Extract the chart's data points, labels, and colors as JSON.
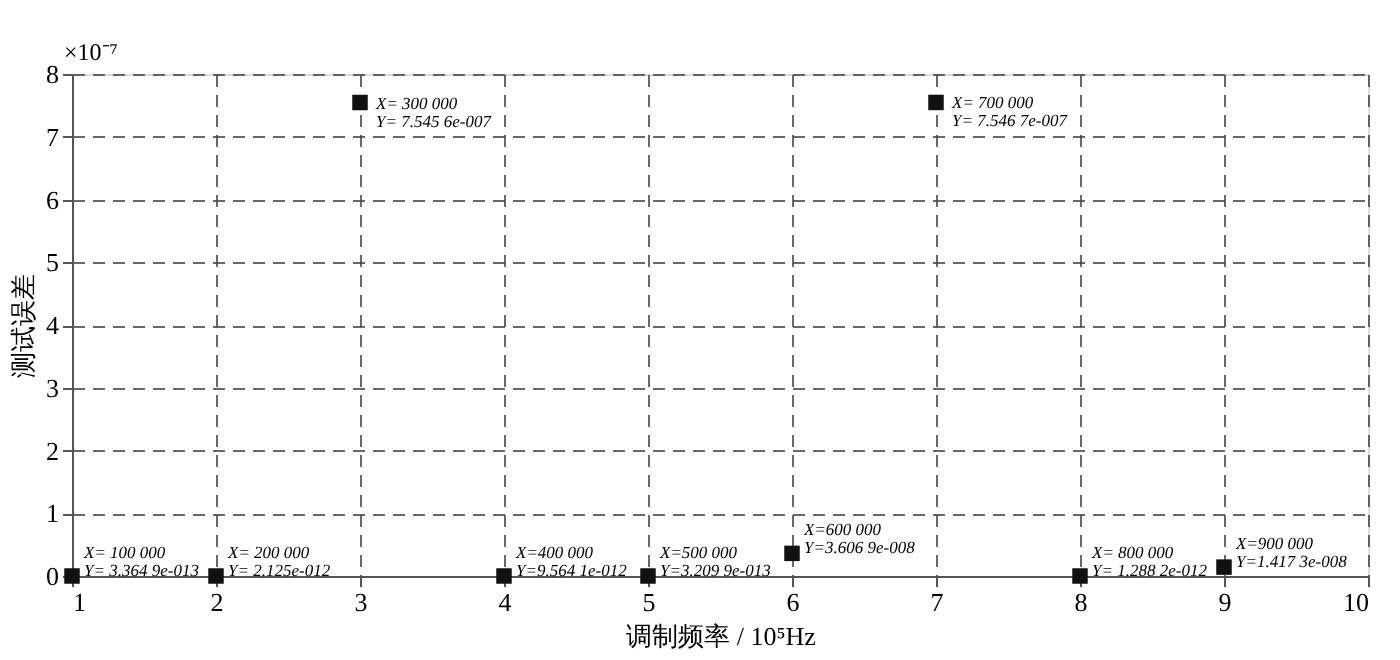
{
  "chart_data": {
    "type": "scatter",
    "xlabel": "调制频率 / 10⁵Hz",
    "ylabel": "测试误差",
    "x": [
      1,
      2,
      3,
      4,
      5,
      6,
      7,
      8,
      9
    ],
    "values": [
      3.3649e-06,
      2.125e-05,
      7.5456,
      9.5641e-05,
      3.2099e-06,
      0.36069,
      7.5467,
      1.2882e-05,
      0.14173
    ],
    "color": "#111111",
    "marker": "square",
    "xlim": [
      1,
      10
    ],
    "xticks": [
      1,
      2,
      3,
      4,
      5,
      6,
      7,
      8,
      9,
      10
    ],
    "ylim": [
      0,
      8
    ],
    "yticks": [
      0,
      1,
      2,
      3,
      4,
      5,
      6,
      7,
      8
    ],
    "grid": true,
    "annotations": [
      "×10⁻⁷",
      {
        "text": "X= 100 000\nY= 3.364 9e-013",
        "x": 1,
        "y": 3.3649e-06
      },
      {
        "text": "X= 200 000\nY= 2.125e-012",
        "x": 2,
        "y": 2.125e-05
      },
      {
        "text": "X= 300 000\nY= 7.545 6e-007",
        "x": 3,
        "y": 7.5456
      },
      {
        "text": "X=400 000\nY=9.564 1e-012",
        "x": 4,
        "y": 9.5641e-05
      },
      {
        "text": "X=500 000\nY=3.209 9e-013",
        "x": 5,
        "y": 3.2099e-06
      },
      {
        "text": "X=600 000\nY=3.606 9e-008",
        "x": 6,
        "y": 0.36069
      },
      {
        "text": "X= 700 000\nY= 7.546 7e-007",
        "x": 7,
        "y": 7.5467
      },
      {
        "text": "X= 800 000\nY= 1.288 2e-012",
        "x": 8,
        "y": 1.2882e-05
      },
      {
        "text": "X=900 000\nY=1.417 3e-008",
        "x": 9,
        "y": 0.14173
      }
    ]
  }
}
